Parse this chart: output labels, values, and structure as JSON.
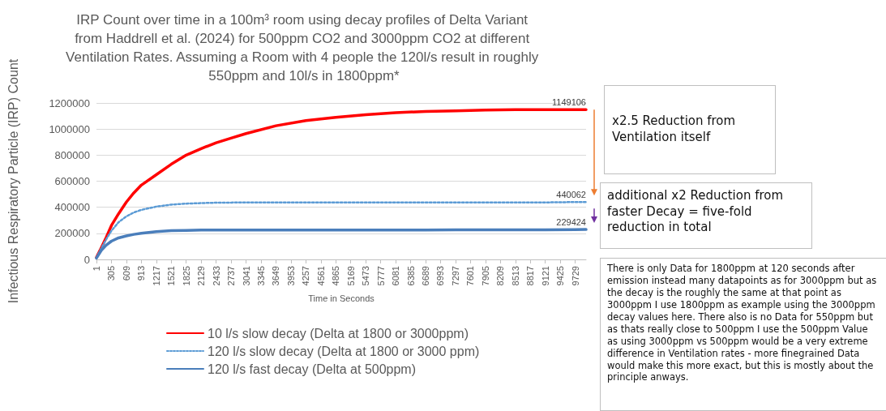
{
  "chart_data": {
    "type": "line",
    "title": "IRP Count over time in a 100m³ room using decay profiles of Delta Variant from Haddrell et al. (2024) for 500ppm CO2 and 3000ppm CO2 at different Ventilation Rates. Assuming a Room with 4 people the 120l/s result in roughly 550ppm and 10l/s in 1800ppm*",
    "xlabel": "Time in Seconds",
    "ylabel": "Infectious Respiratory Particle (IRP) Count",
    "x": [
      1,
      100,
      200,
      305,
      450,
      609,
      760,
      913,
      1217,
      1521,
      1825,
      2129,
      2433,
      2737,
      3041,
      3649,
      4257,
      4865,
      5473,
      6081,
      6689,
      7297,
      7905,
      8513,
      9121,
      9729,
      9950
    ],
    "series": [
      {
        "name": "10 l/s slow decay (Delta at 1800 or 3000ppm)",
        "color": "#ff0000",
        "line_style": "solid",
        "values": [
          15000,
          90000,
          170000,
          260000,
          350000,
          440000,
          510000,
          570000,
          650000,
          730000,
          800000,
          850000,
          895000,
          930000,
          965000,
          1025000,
          1065000,
          1090000,
          1110000,
          1125000,
          1135000,
          1140000,
          1145000,
          1148000,
          1149000,
          1149000,
          1149106
        ],
        "value_labels": [
          null,
          null,
          null,
          null,
          null,
          null,
          null,
          null,
          null,
          null,
          null,
          null,
          null,
          null,
          null,
          null,
          null,
          null,
          null,
          null,
          null,
          null,
          null,
          null,
          null,
          null,
          "1149106"
        ]
      },
      {
        "name": "120 l/s slow decay (Delta at 1800 or 3000 ppm)",
        "color": "#5b9bd5",
        "line_style": "dotted",
        "values": [
          15000,
          85000,
          155000,
          220000,
          285000,
          330000,
          360000,
          380000,
          405000,
          420000,
          428000,
          432000,
          435000,
          436000,
          437000,
          437000,
          437000,
          437000,
          437000,
          437000,
          437000,
          437000,
          437000,
          437000,
          437000,
          440000,
          440062
        ],
        "value_labels": [
          null,
          null,
          null,
          null,
          null,
          null,
          null,
          null,
          null,
          null,
          null,
          null,
          null,
          null,
          null,
          null,
          null,
          null,
          null,
          null,
          null,
          null,
          null,
          null,
          null,
          null,
          "440062"
        ]
      },
      {
        "name": "120 l/s fast decay (Delta at 500ppm)",
        "color": "#4a7ebb",
        "line_style": "solid",
        "values": [
          10000,
          70000,
          110000,
          140000,
          165000,
          180000,
          192000,
          200000,
          213000,
          220000,
          223000,
          225000,
          226000,
          226000,
          226000,
          226000,
          226000,
          226000,
          226000,
          226000,
          226000,
          227000,
          227000,
          227000,
          227000,
          228000,
          229424
        ],
        "value_labels": [
          null,
          null,
          null,
          null,
          null,
          null,
          null,
          null,
          null,
          null,
          null,
          null,
          null,
          null,
          null,
          null,
          null,
          null,
          null,
          null,
          null,
          null,
          null,
          null,
          null,
          null,
          "229424"
        ]
      }
    ],
    "xlim": [
      1,
      9950
    ],
    "xticks": [
      1,
      305,
      609,
      913,
      1217,
      1521,
      1825,
      2129,
      2433,
      2737,
      3041,
      3345,
      3649,
      3953,
      4257,
      4561,
      4865,
      5169,
      5473,
      5777,
      6081,
      6385,
      6689,
      6993,
      7297,
      7601,
      7905,
      8209,
      8513,
      8817,
      9121,
      9425,
      9729
    ],
    "ylim": [
      0,
      1200000
    ],
    "yticks": [
      0,
      200000,
      400000,
      600000,
      800000,
      1000000,
      1200000
    ],
    "grid": "y",
    "legend": "bottom left",
    "marker": "none",
    "annotations": [
      "x2.5 Reduction from Ventilation itself",
      "additional x2 Reduction from faster Decay = five-fold reduction in total",
      "There is only Data for 1800ppm at 120 seconds after emission instead many datapoints as for 3000ppm but as the decay is the roughly the same at that point as 3000ppm I use 1800ppm as example using the 3000ppm decay values  here. There also is no Data for 550ppm but as thats really close to 500ppm I use the 500ppm Value as using 3000ppm vs 500ppm would be a very extreme difference in Ventilation rates - more finegrained Data would make this more exact, but this is mostly about the principle anways."
    ]
  }
}
